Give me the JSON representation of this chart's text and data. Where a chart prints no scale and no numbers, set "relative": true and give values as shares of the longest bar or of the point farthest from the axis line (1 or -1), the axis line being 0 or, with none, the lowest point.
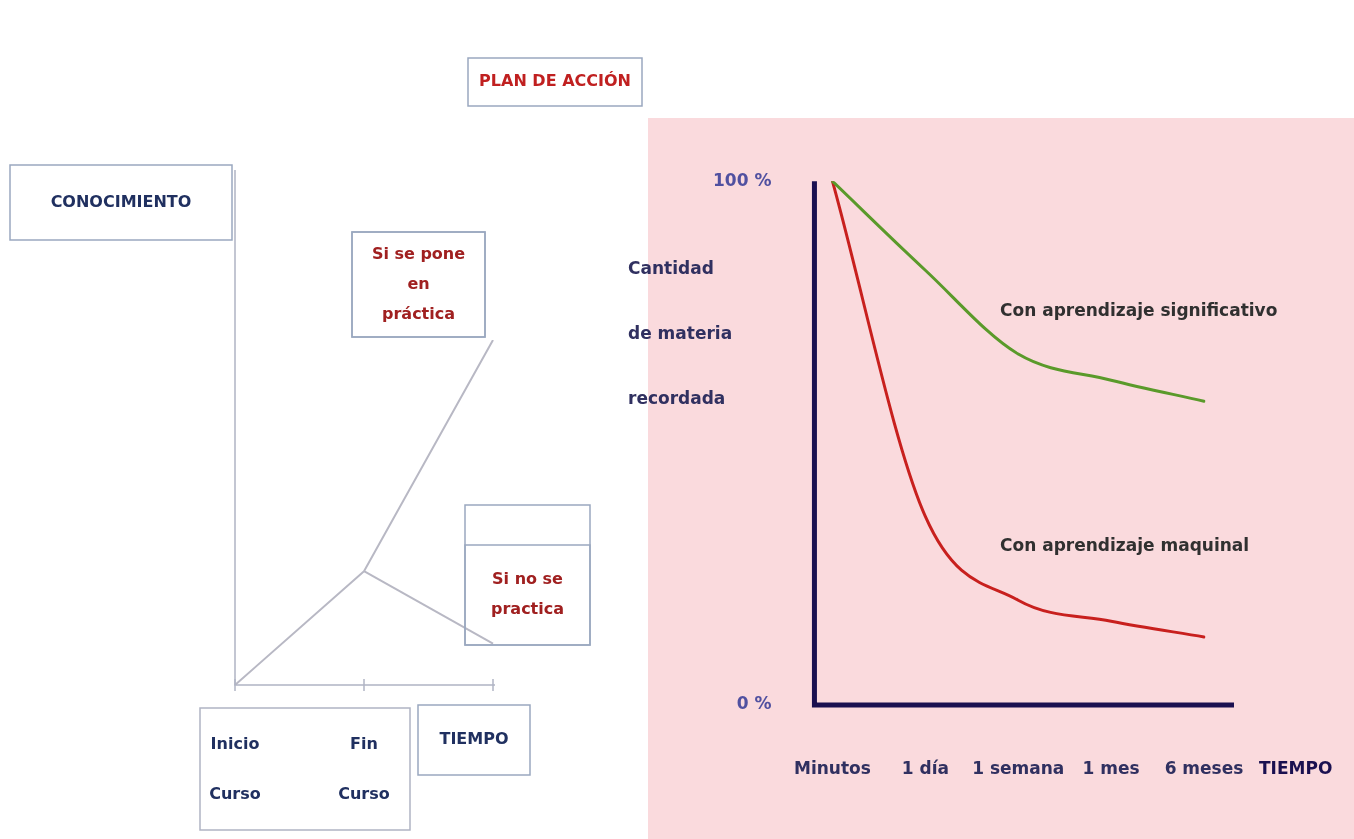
{
  "chart_data": [
    {
      "type": "line",
      "title": "PLAN DE ACCIÓN",
      "xlabel": "TIEMPO",
      "ylabel": "CONOCIMIENTO",
      "categories": [
        "Inicio Curso",
        "Fin Curso",
        null
      ],
      "relative": true,
      "legend": false,
      "marker": "none",
      "series": [
        {
          "name": "Si se pone en práctica",
          "color": "#b8b8c4",
          "values": [
            0,
            0.33,
            1
          ]
        },
        {
          "name": "Si no se practica",
          "color": "#b8b8c4",
          "values": [
            null,
            0.33,
            0.12
          ]
        }
      ]
    },
    {
      "type": "line",
      "xlabel": "TIEMPO",
      "ylabel": "Cantidad de materia recordada",
      "legend": false,
      "marker": "none",
      "categories": [
        "Minutos",
        "1 día",
        "1 semana",
        "1 mes",
        "6 meses"
      ],
      "ylim": [
        0,
        100
      ],
      "yticks": [
        {
          "value": 0,
          "label": "0 %"
        },
        {
          "value": 100,
          "label": "100 %"
        }
      ],
      "series": [
        {
          "name": "Con aprendizaje significativo",
          "color": "#5a9a2a",
          "values": [
            100,
            83,
            67,
            62,
            58
          ]
        },
        {
          "name": "Con aprendizaje maquinal",
          "color": "#c8201e",
          "values": [
            100,
            36,
            20,
            16,
            13
          ]
        }
      ]
    }
  ]
}
